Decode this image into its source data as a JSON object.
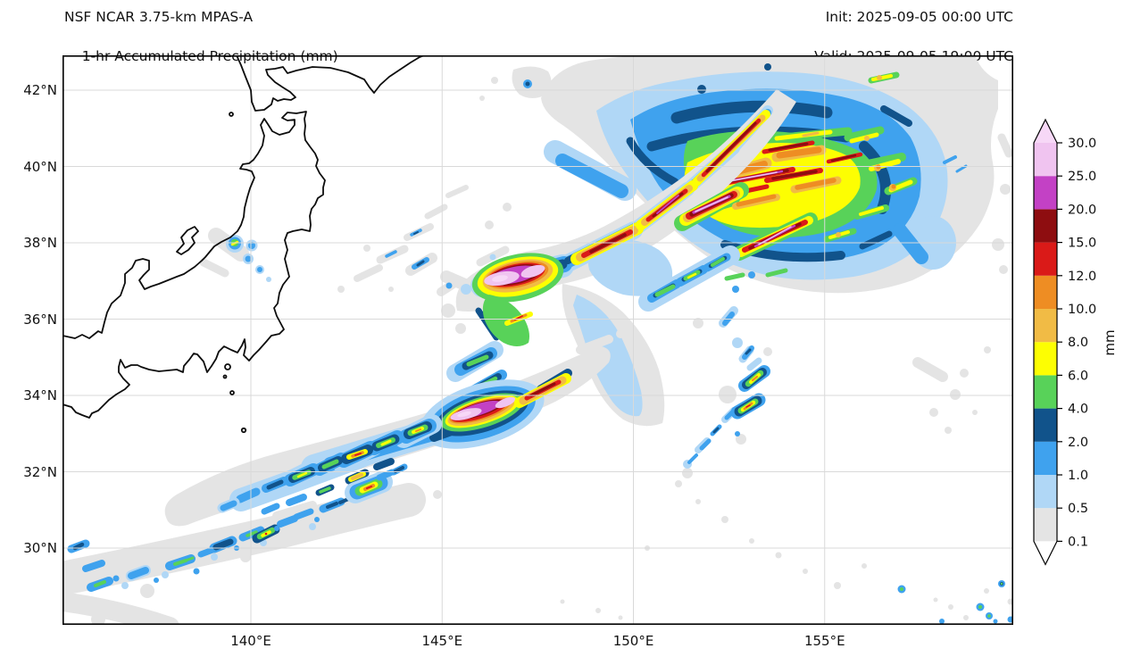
{
  "header": {
    "title_line1": "NSF NCAR 3.75-km MPAS-A",
    "title_line2": "1-hr Accumulated Precipitation (mm)",
    "init_label": "Init: 2025-09-05 00:00 UTC",
    "valid_label": "Valid: 2025-09-05 19:00 UTC"
  },
  "colors": {
    "background": "#ffffff",
    "gridline": "#d9d9d9",
    "coastline": "#0d0d0d",
    "spine": "#000000",
    "under_color": "#ffffff",
    "over_color": "#f7d8f7",
    "palette": [
      {
        "range": "0.1-0.5",
        "color": "#e4e4e4"
      },
      {
        "range": "0.5-1.0",
        "color": "#b0d7f6"
      },
      {
        "range": "1.0-2.0",
        "color": "#3fa2ee"
      },
      {
        "range": "2.0-4.0",
        "color": "#11538b"
      },
      {
        "range": "4.0-6.0",
        "color": "#58d259"
      },
      {
        "range": "6.0-8.0",
        "color": "#fdfe02"
      },
      {
        "range": "8.0-10.0",
        "color": "#f1bb45"
      },
      {
        "range": "10.0-12.0",
        "color": "#ee8d23"
      },
      {
        "range": "12.0-15.0",
        "color": "#da1a18"
      },
      {
        "range": "15.0-20.0",
        "color": "#8e0d10"
      },
      {
        "range": "20.0-25.0",
        "color": "#c341c5"
      },
      {
        "range": "25.0-30.0",
        "color": "#f0c4f0"
      }
    ]
  },
  "axes": {
    "x_ticks": [
      {
        "label": "140°E",
        "lon": 140
      },
      {
        "label": "145°E",
        "lon": 145
      },
      {
        "label": "150°E",
        "lon": 150
      },
      {
        "label": "155°E",
        "lon": 155
      }
    ],
    "y_ticks": [
      {
        "label": "42°N",
        "lat": 42
      },
      {
        "label": "40°N",
        "lat": 40
      },
      {
        "label": "38°N",
        "lat": 38
      },
      {
        "label": "36°N",
        "lat": 36
      },
      {
        "label": "34°N",
        "lat": 34
      },
      {
        "label": "32°N",
        "lat": 32
      },
      {
        "label": "30°N",
        "lat": 30
      }
    ]
  },
  "colorbar": {
    "unit": "mm",
    "tick_labels_bottom_to_top": [
      "0.1",
      "0.5",
      "1.0",
      "2.0",
      "4.0",
      "6.0",
      "8.0",
      "10.0",
      "12.0",
      "15.0",
      "20.0",
      "25.0",
      "30.0"
    ],
    "extend": "both"
  },
  "chart_data": {
    "type": "heatmap",
    "subtype": "filled-contour precipitation map",
    "title": "NSF NCAR 3.75-km MPAS-A — 1-hr Accumulated Precipitation (mm)",
    "init_time": "2025-09-05 00:00 UTC",
    "valid_time": "2025-09-05 19:00 UTC",
    "units": "mm",
    "levels_mm": [
      0.1,
      0.5,
      1.0,
      2.0,
      4.0,
      6.0,
      8.0,
      10.0,
      12.0,
      15.0,
      20.0,
      25.0,
      30.0
    ],
    "map_extent": {
      "lon_min": 135.0,
      "lon_max": 160.0,
      "lat_min": 28.0,
      "lat_max": 43.0
    },
    "grid_on": true,
    "legend_position": "right colorbar, extend arrows both ends",
    "geography": [
      "Honshu (Japan)",
      "SW Hokkaido",
      "Sado Island",
      "Noto Peninsula",
      "Kii Peninsula",
      "Izu Islands"
    ],
    "features": [
      {
        "name": "cyclone precipitation shield",
        "area": "38-41.5N, 149-158E",
        "max_mm": 30,
        "note": "large comma-shaped system, SW-NE banded cores >25-30 mm embedded in 1-4 mm shield"
      },
      {
        "name": "central frontal rainband",
        "area": "36.5-38.5N, 146-150.5E",
        "max_mm": 30,
        "note": "intense band, >30 mm core near 147E/37.3N, extends NE to join cyclone"
      },
      {
        "name": "southwest rainband",
        "area": "31.5-34N, 141-146.5E",
        "max_mm": 30,
        "note": ">30 mm core near 144.5E/33N, trailing broken cells to WSW"
      },
      {
        "name": "southwest shower trail",
        "area": "29-31.5N, 135-142E",
        "max_mm": 12,
        "note": "scattered 1-12 mm cells along a 0.1-0.5 mm band"
      },
      {
        "name": "convective line east",
        "area": "33.5-35.5N, 152-153.5E",
        "max_mm": 15,
        "note": "N-S line of showers, two 10-15 mm cores"
      },
      {
        "name": "isolated cells southeast",
        "area": "28-29.5N, 156-159.5E",
        "max_mm": 6,
        "note": "tiny 1-6 mm cells"
      },
      {
        "name": "coastal cell near Sado",
        "area": "38N, 139.5E",
        "max_mm": 8,
        "note": "single small cell on the Honshu west coast"
      }
    ]
  }
}
